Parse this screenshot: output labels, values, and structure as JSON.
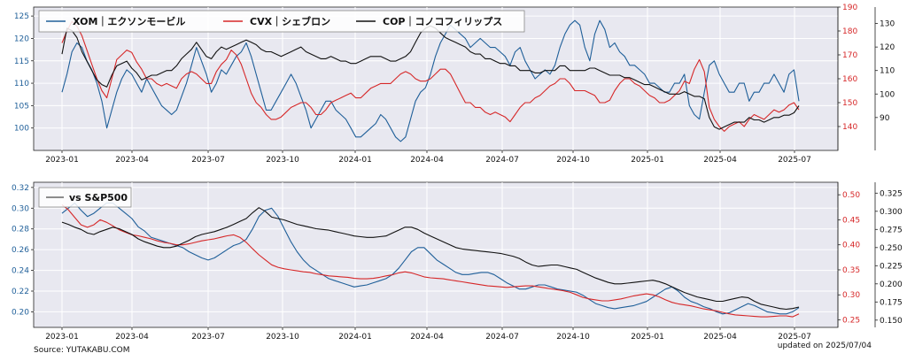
{
  "colors": {
    "xom": "#1f5f99",
    "cvx": "#d62728",
    "cop": "#111111",
    "panel_bg": "#e8e8f0",
    "grid": "#ffffff"
  },
  "footer": {
    "source": "Source: YUTAKABU.COM",
    "updated": "updated on 2025/07/04"
  },
  "chart_data": [
    {
      "type": "line",
      "panel": "price",
      "x_tick_labels": [
        "2023-01",
        "2023-04",
        "2023-07",
        "2023-10",
        "2024-01",
        "2024-04",
        "2024-07",
        "2024-10",
        "2025-01",
        "2025-04",
        "2025-07"
      ],
      "axes": {
        "left": {
          "ylim": [
            95,
            127
          ],
          "ticks": [
            100,
            105,
            110,
            115,
            120,
            125
          ],
          "color": "#1f5f99"
        },
        "right1": {
          "ylim": [
            130,
            190
          ],
          "ticks": [
            140,
            150,
            160,
            170,
            180,
            190
          ],
          "color": "#d62728"
        },
        "right2": {
          "ylim": [
            76,
            137
          ],
          "ticks": [
            90,
            100,
            110,
            120,
            130
          ],
          "color": "#111111"
        }
      },
      "legend_position": "top-left",
      "series": [
        {
          "name": "XOM｜エクソンモービル",
          "axis": "left",
          "color_key": "xom",
          "values": [
            108,
            112,
            117,
            119,
            118,
            115,
            113,
            110,
            106,
            100,
            104,
            108,
            111,
            113,
            112,
            110,
            108,
            111,
            109,
            107,
            105,
            104,
            103,
            104,
            107,
            110,
            114,
            118,
            115,
            112,
            108,
            110,
            113,
            112,
            114,
            116,
            117,
            119,
            116,
            112,
            108,
            104,
            104,
            106,
            108,
            110,
            112,
            110,
            107,
            104,
            100,
            102,
            104,
            106,
            106,
            104,
            103,
            102,
            100,
            98,
            98,
            99,
            100,
            101,
            103,
            102,
            100,
            98,
            97,
            98,
            102,
            106,
            108,
            109,
            112,
            116,
            119,
            121,
            123,
            122,
            121,
            120,
            118,
            119,
            120,
            119,
            118,
            118,
            117,
            116,
            114,
            117,
            118,
            115,
            113,
            111,
            112,
            113,
            112,
            114,
            118,
            121,
            123,
            124,
            123,
            118,
            115,
            121,
            124,
            122,
            118,
            119,
            117,
            116,
            114,
            114,
            113,
            112,
            110,
            110,
            109,
            108,
            108,
            110,
            110,
            112,
            105,
            103,
            102,
            108,
            114,
            115,
            112,
            110,
            108,
            108,
            110,
            110,
            106,
            108,
            108,
            110,
            110,
            112,
            110,
            108,
            112,
            113,
            106
          ]
        },
        {
          "name": "CVX｜シェブロン",
          "axis": "right1",
          "color_key": "cvx",
          "values": [
            175,
            180,
            184,
            182,
            178,
            172,
            166,
            160,
            155,
            152,
            160,
            168,
            170,
            172,
            171,
            167,
            164,
            160,
            160,
            158,
            157,
            158,
            157,
            156,
            160,
            162,
            163,
            162,
            160,
            158,
            158,
            163,
            166,
            168,
            172,
            170,
            166,
            160,
            154,
            150,
            148,
            145,
            143,
            143,
            144,
            146,
            148,
            149,
            150,
            150,
            148,
            145,
            145,
            147,
            150,
            151,
            152,
            153,
            154,
            152,
            152,
            154,
            156,
            157,
            158,
            158,
            158,
            160,
            162,
            163,
            162,
            160,
            159,
            159,
            160,
            162,
            164,
            164,
            162,
            158,
            154,
            150,
            150,
            148,
            148,
            146,
            145,
            146,
            145,
            144,
            142,
            145,
            148,
            150,
            150,
            152,
            153,
            155,
            157,
            158,
            160,
            160,
            158,
            155,
            155,
            155,
            154,
            153,
            150,
            150,
            151,
            155,
            158,
            160,
            160,
            158,
            157,
            155,
            153,
            152,
            150,
            150,
            151,
            153,
            155,
            159,
            158,
            164,
            168,
            163,
            148,
            143,
            140,
            138,
            140,
            141,
            142,
            140,
            143,
            145,
            144,
            143,
            145,
            147,
            146,
            147,
            149,
            150,
            147
          ]
        },
        {
          "name": "COP｜コノコフィリップス",
          "axis": "right2",
          "color_key": "cop",
          "values": [
            117,
            128,
            127,
            124,
            118,
            114,
            110,
            106,
            104,
            103,
            108,
            112,
            113,
            114,
            111,
            109,
            106,
            107,
            108,
            108,
            109,
            110,
            110,
            112,
            115,
            117,
            119,
            122,
            119,
            116,
            115,
            118,
            120,
            119,
            120,
            121,
            122,
            123,
            122,
            121,
            119,
            118,
            118,
            117,
            116,
            117,
            118,
            119,
            120,
            118,
            117,
            116,
            115,
            115,
            116,
            115,
            114,
            114,
            113,
            113,
            114,
            115,
            116,
            116,
            116,
            115,
            114,
            114,
            115,
            116,
            118,
            122,
            126,
            128,
            129,
            128,
            126,
            124,
            123,
            122,
            121,
            120,
            118,
            117,
            117,
            115,
            115,
            114,
            113,
            113,
            112,
            112,
            110,
            110,
            110,
            109,
            109,
            110,
            110,
            110,
            112,
            112,
            110,
            110,
            110,
            110,
            111,
            111,
            110,
            109,
            108,
            108,
            108,
            107,
            107,
            106,
            105,
            104,
            104,
            103,
            102,
            101,
            100,
            100,
            100,
            101,
            100,
            99,
            99,
            98,
            90,
            86,
            85,
            86,
            87,
            88,
            88,
            88,
            90,
            89,
            89,
            88,
            89,
            90,
            90,
            91,
            91,
            92,
            95
          ]
        }
      ]
    },
    {
      "type": "line",
      "panel": "relative",
      "x_tick_labels": [
        "2023-01",
        "2023-04",
        "2023-07",
        "2023-10",
        "2024-01",
        "2024-04",
        "2024-07",
        "2024-10",
        "2025-01",
        "2025-04",
        "2025-07"
      ],
      "axes": {
        "left": {
          "ylim": [
            0.185,
            0.325
          ],
          "ticks": [
            0.2,
            0.22,
            0.24,
            0.26,
            0.28,
            0.3,
            0.32
          ],
          "color": "#1f5f99"
        },
        "right1": {
          "ylim": [
            0.235,
            0.525
          ],
          "ticks": [
            0.25,
            0.3,
            0.35,
            0.4,
            0.45,
            0.5
          ],
          "color": "#d62728"
        },
        "right2": {
          "ylim": [
            0.14,
            0.34
          ],
          "ticks": [
            0.15,
            0.175,
            0.2,
            0.225,
            0.25,
            0.275,
            0.3,
            0.325
          ],
          "color": "#111111"
        }
      },
      "legend_position": "top-left",
      "legend_entries": [
        "vs S&P500"
      ],
      "series": [
        {
          "name": "XOM",
          "axis": "left",
          "color_key": "xom",
          "values": [
            0.295,
            0.3,
            0.305,
            0.298,
            0.292,
            0.295,
            0.3,
            0.305,
            0.305,
            0.3,
            0.295,
            0.29,
            0.282,
            0.278,
            0.272,
            0.27,
            0.268,
            0.266,
            0.264,
            0.262,
            0.258,
            0.255,
            0.252,
            0.25,
            0.252,
            0.256,
            0.26,
            0.264,
            0.266,
            0.27,
            0.28,
            0.292,
            0.298,
            0.3,
            0.292,
            0.28,
            0.268,
            0.258,
            0.25,
            0.244,
            0.24,
            0.236,
            0.232,
            0.23,
            0.228,
            0.226,
            0.224,
            0.225,
            0.226,
            0.228,
            0.23,
            0.232,
            0.236,
            0.242,
            0.25,
            0.258,
            0.262,
            0.262,
            0.256,
            0.25,
            0.246,
            0.242,
            0.238,
            0.236,
            0.236,
            0.237,
            0.238,
            0.238,
            0.236,
            0.232,
            0.228,
            0.225,
            0.222,
            0.222,
            0.224,
            0.226,
            0.226,
            0.224,
            0.222,
            0.221,
            0.22,
            0.219,
            0.216,
            0.212,
            0.208,
            0.206,
            0.204,
            0.203,
            0.204,
            0.205,
            0.206,
            0.208,
            0.21,
            0.214,
            0.218,
            0.222,
            0.224,
            0.22,
            0.214,
            0.21,
            0.208,
            0.205,
            0.203,
            0.2,
            0.198,
            0.199,
            0.202,
            0.205,
            0.208,
            0.206,
            0.203,
            0.2,
            0.199,
            0.198,
            0.198,
            0.2,
            0.204
          ]
        },
        {
          "name": "CVX",
          "axis": "right1",
          "color_key": "cvx",
          "values": [
            0.48,
            0.47,
            0.455,
            0.44,
            0.435,
            0.44,
            0.45,
            0.445,
            0.438,
            0.43,
            0.425,
            0.42,
            0.418,
            0.415,
            0.412,
            0.408,
            0.405,
            0.403,
            0.4,
            0.4,
            0.402,
            0.405,
            0.408,
            0.41,
            0.412,
            0.415,
            0.418,
            0.42,
            0.415,
            0.405,
            0.392,
            0.38,
            0.37,
            0.36,
            0.355,
            0.352,
            0.35,
            0.348,
            0.346,
            0.345,
            0.342,
            0.34,
            0.338,
            0.337,
            0.336,
            0.335,
            0.333,
            0.332,
            0.332,
            0.333,
            0.335,
            0.338,
            0.34,
            0.344,
            0.346,
            0.344,
            0.34,
            0.336,
            0.334,
            0.333,
            0.332,
            0.33,
            0.328,
            0.326,
            0.324,
            0.322,
            0.32,
            0.318,
            0.317,
            0.316,
            0.315,
            0.316,
            0.317,
            0.318,
            0.318,
            0.316,
            0.314,
            0.312,
            0.31,
            0.308,
            0.305,
            0.3,
            0.295,
            0.292,
            0.29,
            0.288,
            0.288,
            0.29,
            0.292,
            0.295,
            0.298,
            0.3,
            0.302,
            0.3,
            0.296,
            0.29,
            0.285,
            0.282,
            0.28,
            0.278,
            0.275,
            0.272,
            0.27,
            0.268,
            0.265,
            0.262,
            0.26,
            0.259,
            0.258,
            0.257,
            0.256,
            0.256,
            0.257,
            0.258,
            0.258,
            0.256,
            0.262
          ]
        },
        {
          "name": "COP",
          "axis": "right2",
          "color_key": "cop",
          "values": [
            0.285,
            0.282,
            0.278,
            0.275,
            0.27,
            0.268,
            0.272,
            0.275,
            0.278,
            0.276,
            0.272,
            0.268,
            0.262,
            0.258,
            0.255,
            0.252,
            0.25,
            0.25,
            0.252,
            0.256,
            0.26,
            0.265,
            0.268,
            0.27,
            0.272,
            0.275,
            0.278,
            0.282,
            0.286,
            0.29,
            0.298,
            0.305,
            0.3,
            0.292,
            0.29,
            0.288,
            0.285,
            0.282,
            0.28,
            0.278,
            0.276,
            0.275,
            0.274,
            0.272,
            0.27,
            0.268,
            0.266,
            0.265,
            0.264,
            0.264,
            0.265,
            0.266,
            0.27,
            0.274,
            0.278,
            0.278,
            0.275,
            0.27,
            0.266,
            0.262,
            0.258,
            0.254,
            0.25,
            0.248,
            0.247,
            0.246,
            0.245,
            0.244,
            0.243,
            0.242,
            0.24,
            0.238,
            0.235,
            0.23,
            0.226,
            0.224,
            0.225,
            0.226,
            0.226,
            0.224,
            0.222,
            0.22,
            0.216,
            0.212,
            0.208,
            0.205,
            0.202,
            0.2,
            0.2,
            0.201,
            0.202,
            0.203,
            0.204,
            0.205,
            0.203,
            0.2,
            0.196,
            0.192,
            0.188,
            0.185,
            0.182,
            0.18,
            0.178,
            0.176,
            0.176,
            0.178,
            0.18,
            0.182,
            0.181,
            0.176,
            0.172,
            0.17,
            0.168,
            0.166,
            0.165,
            0.166,
            0.168
          ]
        }
      ]
    }
  ]
}
